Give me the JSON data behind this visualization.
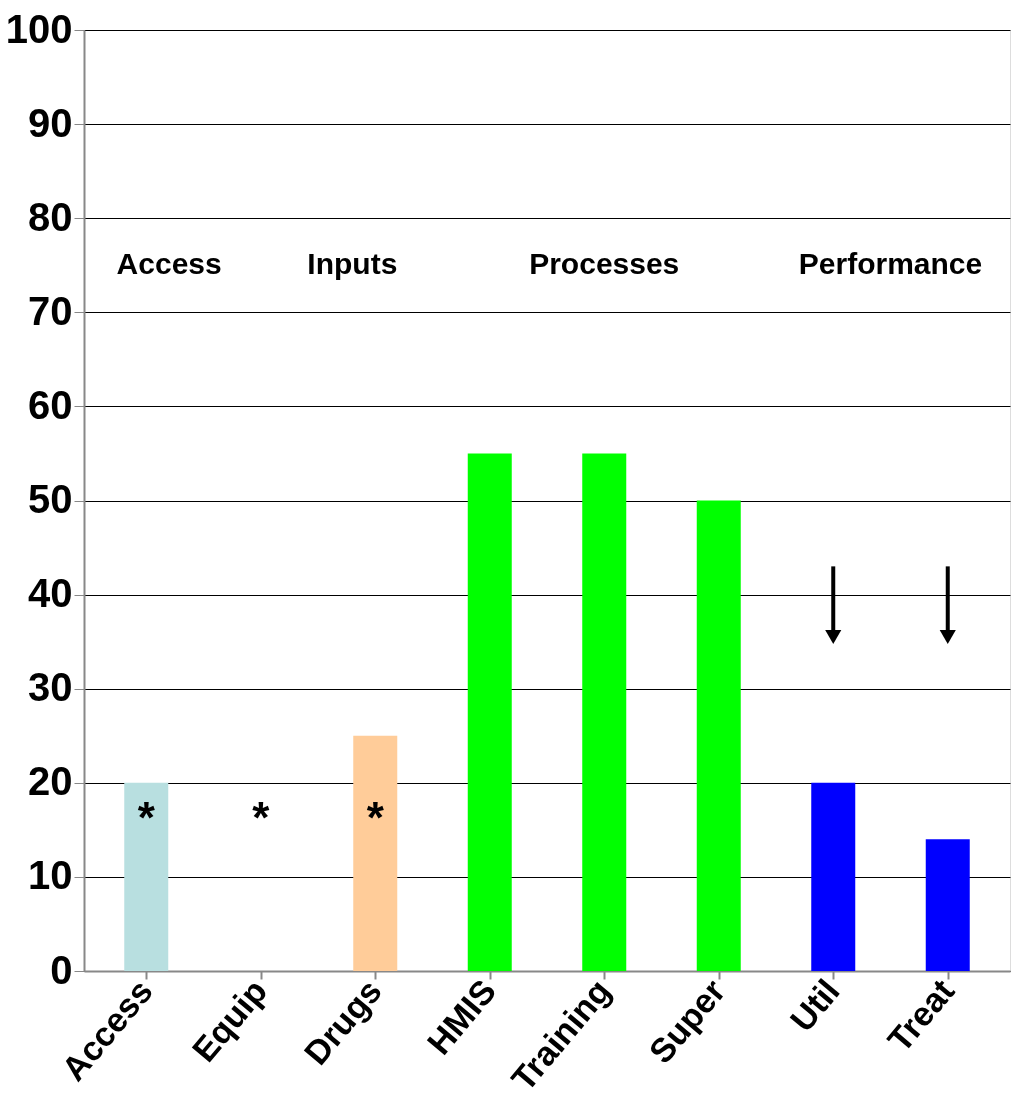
{
  "chart_data": {
    "type": "bar",
    "categories": [
      "Access",
      "Equip",
      "Drugs",
      "HMIS",
      "Training",
      "Super",
      "Util",
      "Treat"
    ],
    "values": [
      20,
      0,
      25,
      55,
      55,
      50,
      20,
      14
    ],
    "colors": [
      "#b8dfe0",
      "#ffcc99",
      "#ffcc99",
      "#00ff00",
      "#00ff00",
      "#00ff00",
      "#0000ff",
      "#0000ff"
    ],
    "ylim": [
      0,
      100
    ],
    "yticks": [
      0,
      10,
      20,
      30,
      40,
      50,
      60,
      70,
      80,
      90,
      100
    ],
    "grid": "y",
    "annotations": [
      "Access",
      "Inputs",
      "Processes",
      "Performance",
      "*",
      "*",
      "*"
    ]
  }
}
